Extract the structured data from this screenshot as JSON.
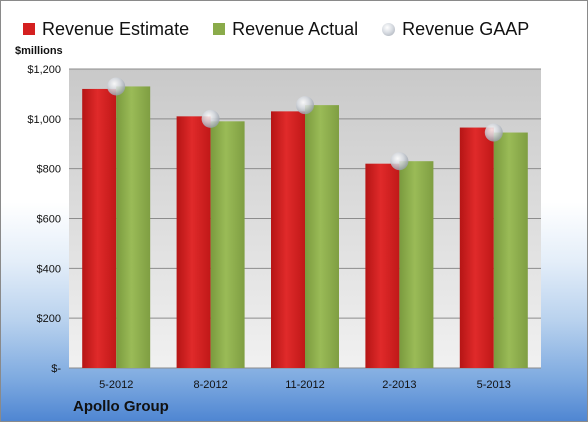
{
  "chart_data": {
    "type": "bar",
    "unit_label": "$millions",
    "categories": [
      "5-2012",
      "8-2012",
      "11-2012",
      "2-2013",
      "5-2013"
    ],
    "series": [
      {
        "name": "Revenue Estimate",
        "kind": "bar",
        "color": "#d42020",
        "values": [
          1120,
          1010,
          1030,
          820,
          965
        ]
      },
      {
        "name": "Revenue Actual",
        "kind": "bar",
        "color": "#8aab4a",
        "values": [
          1130,
          990,
          1055,
          830,
          945
        ]
      },
      {
        "name": "Revenue GAAP",
        "kind": "marker",
        "color": "#c8ccd4",
        "values": [
          1130,
          1000,
          1055,
          830,
          945
        ]
      }
    ],
    "ylim": [
      0,
      1200
    ],
    "yticks": [
      0,
      200,
      400,
      600,
      800,
      1000,
      1200
    ],
    "ytick_labels": [
      "$-",
      "$200",
      "$400",
      "$600",
      "$800",
      "$1,000",
      "$1,200"
    ],
    "grid": true,
    "legend_position": "top",
    "company": "Apollo Group"
  }
}
